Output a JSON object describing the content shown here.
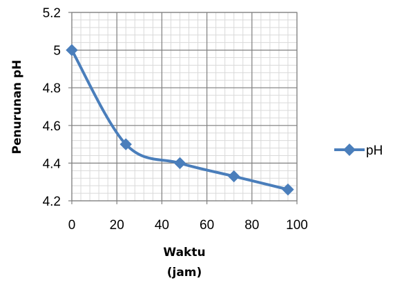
{
  "chart_data": {
    "type": "line",
    "x": [
      0,
      24,
      48,
      72,
      96
    ],
    "series": [
      {
        "name": "pH",
        "values": [
          5.0,
          4.5,
          4.4,
          4.33,
          4.26
        ],
        "color": "#4a7ebb",
        "marker": "diamond",
        "smooth": true
      }
    ],
    "xlabel": [
      "Waktu",
      "(jam)"
    ],
    "ylabel": "Penurunan pH",
    "xlim": [
      0,
      100
    ],
    "ylim": [
      4.2,
      5.2
    ],
    "xticks": [
      0,
      20,
      40,
      60,
      80,
      100
    ],
    "yticks": [
      4.2,
      4.4,
      4.6,
      4.8,
      5.0,
      5.2
    ],
    "xtick_labels": [
      "0",
      "20",
      "40",
      "60",
      "80",
      "100"
    ],
    "ytick_labels": [
      "4.2",
      "4.4",
      "4.6",
      "4.8",
      "5",
      "5.2"
    ],
    "minor_x_step": 4,
    "minor_y_step": 0.04,
    "grid": true,
    "legend_position": "right"
  }
}
